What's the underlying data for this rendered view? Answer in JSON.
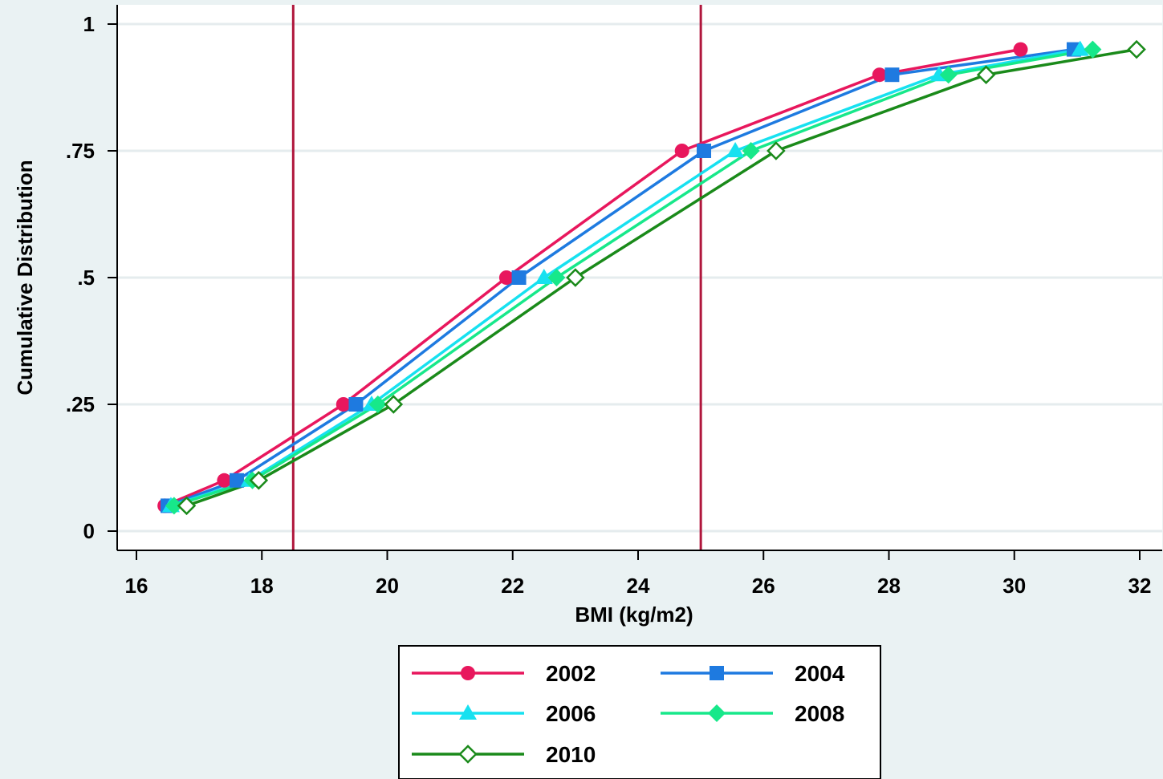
{
  "chart_data": {
    "type": "line",
    "xlabel": "BMI (kg/m2)",
    "ylabel": "Cumulative Distribution",
    "xlim": [
      16,
      32
    ],
    "ylim": [
      0,
      1
    ],
    "xticks": [
      16,
      18,
      20,
      22,
      24,
      26,
      28,
      30,
      32
    ],
    "yticks": [
      0,
      0.25,
      0.5,
      0.75,
      1
    ],
    "ytick_labels": [
      "0",
      ".25",
      ".5",
      ".75",
      "1"
    ],
    "reference_lines_x": [
      18.5,
      25
    ],
    "grid": "horizontal",
    "legend_position": "bottom",
    "series": [
      {
        "name": "2002",
        "marker": "circle",
        "color": "#e8175d",
        "x": [
          16.45,
          17.4,
          19.3,
          21.9,
          24.7,
          27.85,
          30.1
        ],
        "y": [
          0.05,
          0.1,
          0.25,
          0.5,
          0.75,
          0.9,
          0.95
        ]
      },
      {
        "name": "2004",
        "marker": "square",
        "color": "#1e7ae0",
        "x": [
          16.5,
          17.6,
          19.5,
          22.1,
          25.05,
          28.05,
          30.95
        ],
        "y": [
          0.05,
          0.1,
          0.25,
          0.5,
          0.75,
          0.9,
          0.95
        ]
      },
      {
        "name": "2006",
        "marker": "triangle",
        "color": "#17e1f0",
        "x": [
          16.55,
          17.8,
          19.75,
          22.5,
          25.55,
          28.8,
          31.05
        ],
        "y": [
          0.05,
          0.1,
          0.25,
          0.5,
          0.75,
          0.9,
          0.95
        ]
      },
      {
        "name": "2008",
        "marker": "diamond",
        "color": "#17e88a",
        "x": [
          16.6,
          17.85,
          19.85,
          22.7,
          25.8,
          28.95,
          31.25
        ],
        "y": [
          0.05,
          0.1,
          0.25,
          0.5,
          0.75,
          0.9,
          0.95
        ]
      },
      {
        "name": "2010",
        "marker": "diamond-hollow",
        "color": "#1a8a1a",
        "x": [
          16.8,
          17.95,
          20.1,
          23.0,
          26.2,
          29.55,
          31.95
        ],
        "y": [
          0.05,
          0.1,
          0.25,
          0.5,
          0.75,
          0.9,
          0.95
        ]
      }
    ]
  },
  "colors": {
    "background": "#eaf2f3",
    "plot_background": "#ffffff",
    "reference_line": "#b0163c",
    "gridline": "#e5ecee"
  }
}
